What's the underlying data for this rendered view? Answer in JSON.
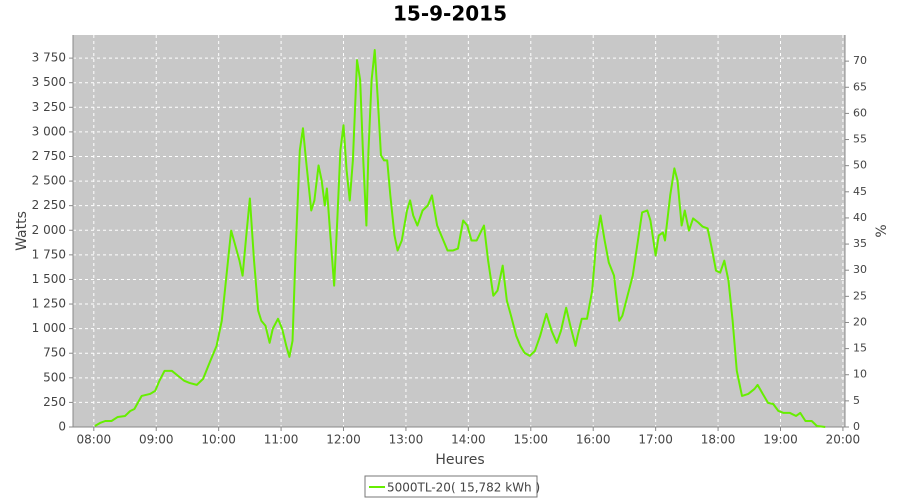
{
  "chart_data": {
    "type": "line",
    "title": "15-9-2015",
    "xlabel": "Heures",
    "ylabel": "Watts",
    "y2label": "%",
    "xlim": [
      460,
      1202
    ],
    "xticks": [
      {
        "value": 480,
        "label": "08:00"
      },
      {
        "value": 540,
        "label": "09:00"
      },
      {
        "value": 600,
        "label": "10:00"
      },
      {
        "value": 660,
        "label": "11:00"
      },
      {
        "value": 720,
        "label": "12:00"
      },
      {
        "value": 780,
        "label": "13:00"
      },
      {
        "value": 840,
        "label": "14:00"
      },
      {
        "value": 900,
        "label": "15:00"
      },
      {
        "value": 960,
        "label": "16:00"
      },
      {
        "value": 1020,
        "label": "17:00"
      },
      {
        "value": 1080,
        "label": "18:00"
      },
      {
        "value": 1140,
        "label": "19:00"
      },
      {
        "value": 1200,
        "label": "20:00"
      }
    ],
    "ylim": [
      0,
      3985
    ],
    "yticks": [
      0,
      250,
      500,
      750,
      {
        "value": 1000,
        "label": "1 000"
      },
      {
        "value": 1250,
        "label": "1 250"
      },
      {
        "value": 1500,
        "label": "1 500"
      },
      {
        "value": 1750,
        "label": "1 750"
      },
      {
        "value": 2000,
        "label": "2 000"
      },
      {
        "value": 2250,
        "label": "2 250"
      },
      {
        "value": 2500,
        "label": "2 500"
      },
      {
        "value": 2750,
        "label": "2 750"
      },
      {
        "value": 3000,
        "label": "3 000"
      },
      {
        "value": 3250,
        "label": "3 250"
      },
      {
        "value": 3500,
        "label": "3 500"
      },
      {
        "value": 3750,
        "label": "3 750"
      }
    ],
    "y2lim": [
      0,
      75
    ],
    "y2ticks": [
      0,
      5,
      10,
      15,
      20,
      25,
      30,
      35,
      40,
      45,
      50,
      55,
      60,
      65,
      70
    ],
    "grid": true,
    "legend": "bottom",
    "x": [
      481,
      486,
      491,
      497,
      503,
      510,
      515,
      519,
      526,
      534,
      539,
      543,
      548,
      555,
      561,
      567,
      572,
      579,
      585,
      592,
      598,
      603,
      608,
      612,
      616,
      620,
      623,
      627,
      630,
      634,
      638,
      641,
      645,
      649,
      652,
      657,
      661,
      665,
      668,
      671,
      674,
      678,
      681,
      684,
      689,
      692,
      696,
      699,
      702,
      704,
      707,
      711,
      714,
      717,
      720,
      723,
      726,
      729,
      733,
      736,
      739,
      742,
      744,
      747,
      750,
      753,
      756,
      759,
      762,
      765,
      769,
      772,
      776,
      781,
      784,
      787,
      791,
      796,
      801,
      805,
      810,
      816,
      820,
      825,
      830,
      835,
      839,
      843,
      848,
      855,
      859,
      864,
      868,
      873,
      877,
      881,
      886,
      890,
      894,
      899,
      904,
      909,
      915,
      920,
      925,
      929,
      934,
      938,
      943,
      945,
      949,
      954,
      959,
      963,
      967,
      971,
      975,
      980,
      985,
      988,
      993,
      998,
      1003,
      1007,
      1012,
      1015,
      1020,
      1023,
      1027,
      1029,
      1034,
      1038,
      1041,
      1045,
      1048,
      1052,
      1056,
      1061,
      1065,
      1070,
      1074,
      1078,
      1082,
      1086,
      1090,
      1094,
      1098,
      1103,
      1109,
      1115,
      1118,
      1123,
      1128,
      1133,
      1138,
      1143,
      1149,
      1155,
      1159,
      1164,
      1170,
      1175,
      1183
    ],
    "series": [
      {
        "name": "5000TL-20( 15,782 kWh )",
        "color": "#66ee00",
        "values": [
          10,
          41,
          61,
          61,
          102,
          112,
          163,
          183,
          316,
          336,
          367,
          469,
          571,
          571,
          520,
          469,
          448,
          428,
          489,
          672,
          825,
          1080,
          1590,
          1997,
          1845,
          1691,
          1539,
          1997,
          2323,
          1691,
          1182,
          1080,
          1029,
          856,
          999,
          1100,
          999,
          825,
          713,
          876,
          1794,
          2812,
          3037,
          2710,
          2201,
          2303,
          2659,
          2507,
          2252,
          2425,
          1997,
          1437,
          2099,
          2812,
          3067,
          2608,
          2303,
          2710,
          3729,
          3526,
          2710,
          2048,
          2812,
          3526,
          3832,
          3322,
          2761,
          2710,
          2710,
          2354,
          1947,
          1794,
          1896,
          2201,
          2303,
          2150,
          2048,
          2201,
          2252,
          2354,
          2048,
          1896,
          1794,
          1794,
          1814,
          2099,
          2048,
          1896,
          1896,
          2048,
          1691,
          1335,
          1386,
          1641,
          1284,
          1131,
          927,
          825,
          754,
          723,
          774,
          927,
          1151,
          978,
          856,
          978,
          1212,
          1029,
          825,
          927,
          1100,
          1100,
          1386,
          1896,
          2150,
          1896,
          1671,
          1539,
          1080,
          1131,
          1335,
          1539,
          1896,
          2181,
          2201,
          2099,
          1743,
          1947,
          1977,
          1896,
          2354,
          2629,
          2507,
          2048,
          2201,
          1997,
          2120,
          2079,
          2038,
          2018,
          1814,
          1590,
          1569,
          1691,
          1488,
          1080,
          571,
          316,
          336,
          387,
          428,
          336,
          245,
          234,
          163,
          143,
          143,
          112,
          143,
          61,
          61,
          10,
          0
        ]
      }
    ]
  }
}
